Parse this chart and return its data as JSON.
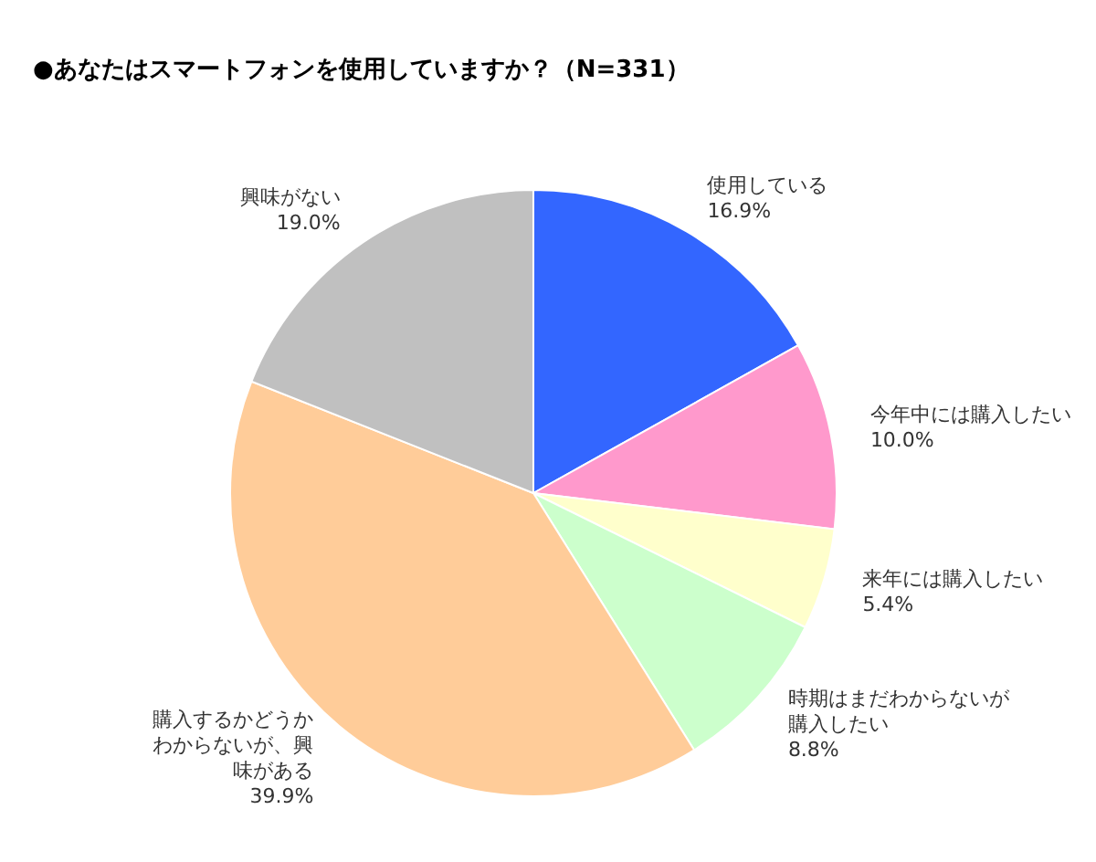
{
  "chart_data": {
    "type": "pie",
    "title": "●あなたはスマートフォンを使用していますか？（N=331）",
    "categories": [
      "使用している",
      "今年中には購入したい",
      "来年には購入したい",
      "時期はまだわからないが購入したい",
      "購入するかどうかわからないが、興味がある",
      "興味がない"
    ],
    "values": [
      16.9,
      10.0,
      5.4,
      8.8,
      39.9,
      19.0
    ],
    "value_labels": [
      "16.9%",
      "10.0%",
      "5.4%",
      "8.8%",
      "39.9%",
      "19.0%"
    ],
    "colors": [
      "#3366ff",
      "#ff99cc",
      "#ffffcc",
      "#ccffcc",
      "#ffcc99",
      "#c0c0c0"
    ]
  }
}
